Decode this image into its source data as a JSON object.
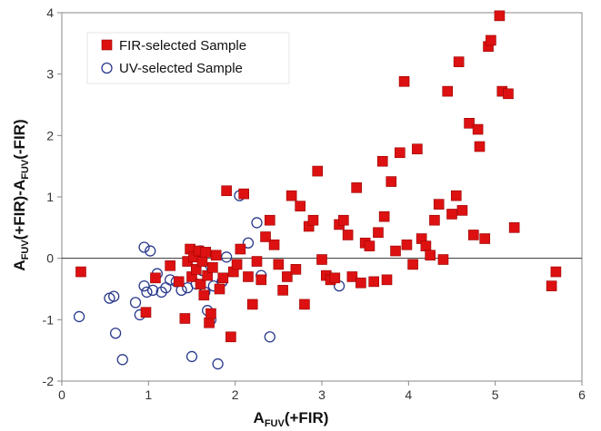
{
  "chart_data": {
    "type": "scatter",
    "title": "",
    "xlabel": {
      "main": "A",
      "sub": "FUV",
      "paren": "(+FIR)"
    },
    "ylabel": {
      "a1": "A",
      "s1": "FUV",
      "m": "(+FIR)-A",
      "s2": "FUV",
      "e": "(-FIR)"
    },
    "xlim": [
      0,
      6
    ],
    "ylim": [
      -2,
      4
    ],
    "xticks": [
      0,
      1,
      2,
      3,
      4,
      5,
      6
    ],
    "yticks": [
      -2,
      -1,
      0,
      1,
      2,
      3,
      4
    ],
    "zero_line": true,
    "legend_position": "top-left",
    "colors": {
      "fir": "#dd1111",
      "fir_edge": "#990000",
      "uv": "#2a3a8c"
    },
    "series": [
      {
        "name": "FIR-selected Sample",
        "marker": "filled-square",
        "points": [
          [
            0.22,
            -0.22
          ],
          [
            0.97,
            -0.88
          ],
          [
            1.08,
            -0.32
          ],
          [
            1.25,
            -0.12
          ],
          [
            1.35,
            -0.38
          ],
          [
            1.42,
            -0.98
          ],
          [
            1.45,
            -0.05
          ],
          [
            1.48,
            0.15
          ],
          [
            1.5,
            -0.3
          ],
          [
            1.52,
            0.02
          ],
          [
            1.55,
            -0.18
          ],
          [
            1.58,
            0.12
          ],
          [
            1.6,
            -0.42
          ],
          [
            1.62,
            -0.05
          ],
          [
            1.64,
            -0.6
          ],
          [
            1.66,
            0.1
          ],
          [
            1.68,
            -0.28
          ],
          [
            1.7,
            -1.05
          ],
          [
            1.72,
            -0.9
          ],
          [
            1.74,
            -0.15
          ],
          [
            1.78,
            0.05
          ],
          [
            1.82,
            -0.5
          ],
          [
            1.86,
            -0.32
          ],
          [
            1.9,
            1.1
          ],
          [
            1.95,
            -1.28
          ],
          [
            1.98,
            -0.22
          ],
          [
            2.02,
            -0.1
          ],
          [
            2.06,
            0.15
          ],
          [
            2.1,
            1.05
          ],
          [
            2.15,
            -0.3
          ],
          [
            2.2,
            -0.75
          ],
          [
            2.25,
            -0.05
          ],
          [
            2.3,
            -0.35
          ],
          [
            2.35,
            0.35
          ],
          [
            2.4,
            0.62
          ],
          [
            2.45,
            0.22
          ],
          [
            2.5,
            -0.1
          ],
          [
            2.55,
            -0.52
          ],
          [
            2.6,
            -0.3
          ],
          [
            2.65,
            1.02
          ],
          [
            2.7,
            -0.18
          ],
          [
            2.75,
            0.85
          ],
          [
            2.8,
            -0.75
          ],
          [
            2.85,
            0.52
          ],
          [
            2.9,
            0.62
          ],
          [
            2.95,
            1.42
          ],
          [
            3.0,
            -0.02
          ],
          [
            3.05,
            -0.28
          ],
          [
            3.1,
            -0.35
          ],
          [
            3.15,
            -0.32
          ],
          [
            3.2,
            0.55
          ],
          [
            3.25,
            0.62
          ],
          [
            3.3,
            0.38
          ],
          [
            3.35,
            -0.3
          ],
          [
            3.4,
            1.15
          ],
          [
            3.45,
            -0.4
          ],
          [
            3.5,
            0.25
          ],
          [
            3.55,
            0.2
          ],
          [
            3.6,
            -0.38
          ],
          [
            3.65,
            0.42
          ],
          [
            3.7,
            1.58
          ],
          [
            3.72,
            0.68
          ],
          [
            3.75,
            -0.35
          ],
          [
            3.8,
            1.25
          ],
          [
            3.85,
            0.12
          ],
          [
            3.9,
            1.72
          ],
          [
            3.95,
            2.88
          ],
          [
            3.98,
            0.22
          ],
          [
            4.05,
            -0.1
          ],
          [
            4.1,
            1.78
          ],
          [
            4.15,
            0.32
          ],
          [
            4.2,
            0.2
          ],
          [
            4.25,
            0.05
          ],
          [
            4.3,
            0.62
          ],
          [
            4.35,
            0.88
          ],
          [
            4.4,
            -0.02
          ],
          [
            4.45,
            2.72
          ],
          [
            4.5,
            0.72
          ],
          [
            4.55,
            1.02
          ],
          [
            4.58,
            3.2
          ],
          [
            4.62,
            0.78
          ],
          [
            4.7,
            2.2
          ],
          [
            4.75,
            0.38
          ],
          [
            4.8,
            2.1
          ],
          [
            4.82,
            1.82
          ],
          [
            4.88,
            0.32
          ],
          [
            4.92,
            3.45
          ],
          [
            4.95,
            3.55
          ],
          [
            5.05,
            3.95
          ],
          [
            5.08,
            2.72
          ],
          [
            5.15,
            2.68
          ],
          [
            5.22,
            0.5
          ],
          [
            5.65,
            -0.45
          ],
          [
            5.7,
            -0.22
          ]
        ]
      },
      {
        "name": "UV-selected Sample",
        "marker": "open-circle",
        "points": [
          [
            0.2,
            -0.95
          ],
          [
            0.55,
            -0.65
          ],
          [
            0.6,
            -0.62
          ],
          [
            0.62,
            -1.22
          ],
          [
            0.7,
            -1.65
          ],
          [
            0.85,
            -0.72
          ],
          [
            0.9,
            -0.92
          ],
          [
            0.95,
            -0.45
          ],
          [
            0.98,
            -0.55
          ],
          [
            1.02,
            0.12
          ],
          [
            1.05,
            -0.52
          ],
          [
            1.1,
            -0.25
          ],
          [
            1.15,
            -0.55
          ],
          [
            1.2,
            -0.48
          ],
          [
            1.25,
            -0.35
          ],
          [
            1.32,
            -0.38
          ],
          [
            1.38,
            -0.52
          ],
          [
            1.45,
            -0.48
          ],
          [
            1.5,
            -1.6
          ],
          [
            1.55,
            -0.42
          ],
          [
            1.6,
            0.12
          ],
          [
            1.62,
            -0.2
          ],
          [
            1.65,
            -0.55
          ],
          [
            1.68,
            -0.85
          ],
          [
            1.72,
            -1.0
          ],
          [
            1.75,
            -0.45
          ],
          [
            1.8,
            -1.72
          ],
          [
            1.85,
            -0.38
          ],
          [
            1.9,
            0.02
          ],
          [
            2.05,
            1.02
          ],
          [
            2.15,
            0.25
          ],
          [
            2.3,
            -0.28
          ],
          [
            2.4,
            -1.28
          ],
          [
            3.2,
            -0.45
          ],
          [
            2.25,
            0.58
          ],
          [
            0.95,
            0.18
          ]
        ]
      }
    ]
  }
}
